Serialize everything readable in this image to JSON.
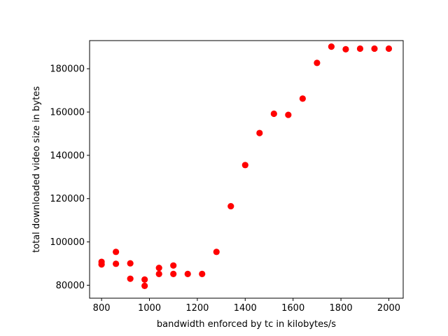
{
  "chart_data": {
    "type": "scatter",
    "title": "",
    "xlabel": "bandwidth enforced by tc in kilobytes/s",
    "ylabel": "total downloaded video size in bytes",
    "xlim": [
      750,
      2060
    ],
    "ylim": [
      74000,
      193000
    ],
    "grid": false,
    "marker_color": "#ff0000",
    "xticks": [
      800,
      1000,
      1200,
      1400,
      1600,
      1800,
      2000
    ],
    "yticks": [
      80000,
      100000,
      120000,
      140000,
      160000,
      180000
    ],
    "points": [
      {
        "x": 800,
        "y": 90800
      },
      {
        "x": 800,
        "y": 89600
      },
      {
        "x": 860,
        "y": 95400
      },
      {
        "x": 860,
        "y": 89900
      },
      {
        "x": 920,
        "y": 90100
      },
      {
        "x": 920,
        "y": 83000
      },
      {
        "x": 980,
        "y": 82600
      },
      {
        "x": 980,
        "y": 79700
      },
      {
        "x": 1040,
        "y": 88000
      },
      {
        "x": 1040,
        "y": 85200
      },
      {
        "x": 1100,
        "y": 89100
      },
      {
        "x": 1100,
        "y": 85200
      },
      {
        "x": 1160,
        "y": 85200
      },
      {
        "x": 1220,
        "y": 85200
      },
      {
        "x": 1280,
        "y": 95400
      },
      {
        "x": 1340,
        "y": 116500
      },
      {
        "x": 1400,
        "y": 135500
      },
      {
        "x": 1460,
        "y": 150300
      },
      {
        "x": 1520,
        "y": 159200
      },
      {
        "x": 1580,
        "y": 158700
      },
      {
        "x": 1640,
        "y": 166200
      },
      {
        "x": 1700,
        "y": 182700
      },
      {
        "x": 1760,
        "y": 190200
      },
      {
        "x": 1820,
        "y": 189000
      },
      {
        "x": 1880,
        "y": 189300
      },
      {
        "x": 1940,
        "y": 189300
      },
      {
        "x": 2000,
        "y": 189300
      }
    ]
  }
}
